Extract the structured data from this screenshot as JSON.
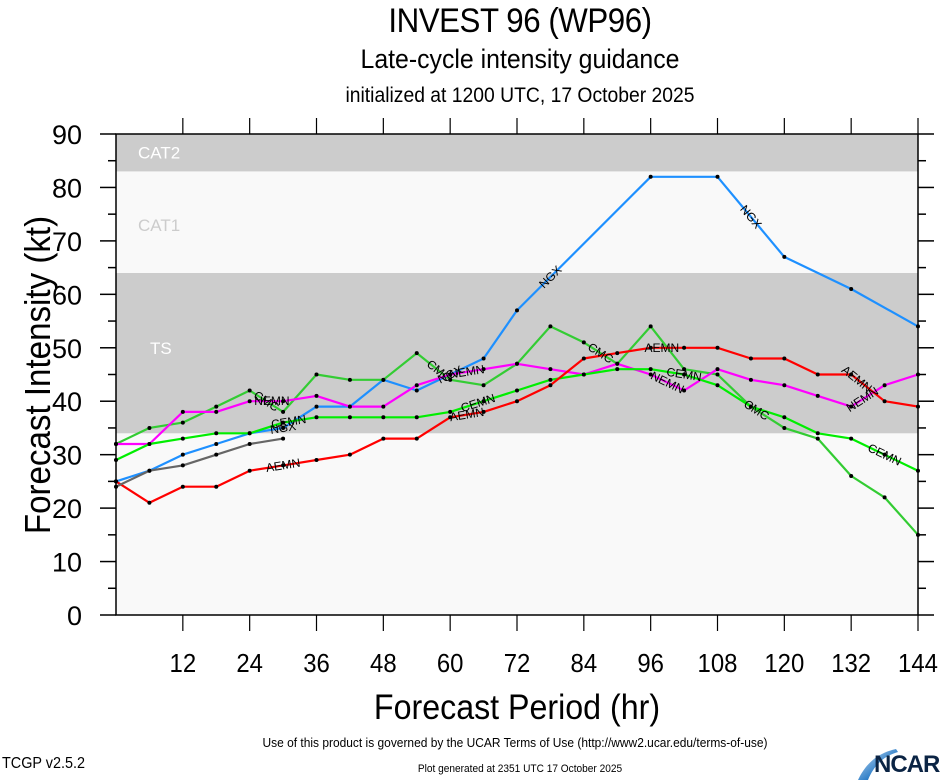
{
  "header": {
    "title": "INVEST 96 (WP96)",
    "subtitle": "Late-cycle intensity guidance",
    "init_line": "initialized at 1200 UTC, 17 October 2025"
  },
  "footer": {
    "terms": "Use of this product is governed by the UCAR Terms of Use (http://www2.ucar.edu/terms-of-use)",
    "version": "TCGP v2.5.2",
    "generated": "Plot generated at 2351 UTC   17 October 2025",
    "logo_text": "NCAR"
  },
  "chart_data": {
    "type": "line",
    "title": "INVEST 96 (WP96)",
    "xlabel": "Forecast Period (hr)",
    "ylabel": "Forecast Intensity (kt)",
    "xlim": [
      0,
      144
    ],
    "ylim": [
      0,
      90
    ],
    "x_ticks": [
      12,
      24,
      36,
      48,
      60,
      72,
      84,
      96,
      108,
      120,
      132,
      144
    ],
    "x_tick_labels": [
      "12",
      "24",
      "36",
      "48",
      "60",
      "72",
      "84",
      "96",
      "108",
      "120",
      "132",
      "144"
    ],
    "y_ticks": [
      0,
      10,
      20,
      30,
      40,
      50,
      60,
      70,
      80,
      90
    ],
    "y_tick_labels": [
      "0",
      "10",
      "20",
      "30",
      "40",
      "50",
      "60",
      "70",
      "80",
      "90"
    ],
    "grid": false,
    "bands": [
      {
        "label": "TS",
        "from": 34,
        "to": 64,
        "color": "#cccccc",
        "label_color": "#ffffff"
      },
      {
        "label": "CAT1",
        "from": 64,
        "to": 83,
        "color": "#f9f9f9",
        "label_color": "#cccccc"
      },
      {
        "label": "CAT2",
        "from": 83,
        "to": 90,
        "color": "#cccccc",
        "label_color": "#ffffff"
      }
    ],
    "below_band_color": "#f9f9f9",
    "series": [
      {
        "name": "NGX",
        "color": "#1e90ff",
        "x": [
          0,
          6,
          12,
          18,
          24,
          30,
          36,
          42,
          48,
          54,
          60,
          66,
          72,
          96,
          108,
          120,
          132,
          144
        ],
        "y": [
          25,
          27,
          30,
          32,
          34,
          35,
          39,
          39,
          44,
          42,
          45,
          48,
          57,
          82,
          82,
          67,
          61,
          54
        ],
        "labels_at": [
          30,
          60,
          78,
          114
        ]
      },
      {
        "name": "CMC",
        "color": "#33cc33",
        "x": [
          0,
          6,
          12,
          18,
          24,
          30,
          36,
          42,
          48,
          54,
          60,
          66,
          72,
          78,
          84,
          90,
          96,
          102,
          108,
          114,
          120,
          126,
          132,
          138,
          144
        ],
        "y": [
          32,
          35,
          36,
          39,
          42,
          38,
          45,
          44,
          44,
          49,
          44,
          43,
          47,
          54,
          51,
          47,
          54,
          46,
          45,
          39,
          35,
          33,
          26,
          22,
          15
        ],
        "labels_at": [
          27,
          58,
          87,
          115
        ]
      },
      {
        "name": "NEMN",
        "color": "#ff00ff",
        "x": [
          0,
          6,
          12,
          18,
          24,
          30,
          36,
          42,
          48,
          54,
          60,
          66,
          72,
          78,
          84,
          90,
          96,
          102,
          108,
          114,
          120,
          126,
          132,
          138,
          144
        ],
        "y": [
          32,
          32,
          38,
          38,
          40,
          40,
          41,
          39,
          39,
          43,
          45,
          46,
          47,
          46,
          45,
          47,
          45,
          42,
          46,
          44,
          43,
          41,
          39,
          43,
          45
        ],
        "labels_at": [
          28,
          63,
          99,
          134
        ]
      },
      {
        "name": "CEMN",
        "color": "#00ee00",
        "x": [
          0,
          6,
          12,
          18,
          24,
          30,
          36,
          42,
          48,
          54,
          60,
          66,
          72,
          78,
          84,
          90,
          96,
          102,
          108,
          114,
          120,
          126,
          132,
          138,
          144
        ],
        "y": [
          29,
          32,
          33,
          34,
          34,
          36,
          37,
          37,
          37,
          37,
          38,
          40,
          42,
          44,
          45,
          46,
          46,
          45,
          43,
          39,
          37,
          34,
          33,
          30,
          27
        ],
        "labels_at": [
          31,
          65,
          102,
          138
        ]
      },
      {
        "name": "AEMN",
        "color": "#ff0000",
        "x": [
          0,
          6,
          12,
          18,
          24,
          30,
          36,
          42,
          48,
          54,
          60,
          66,
          72,
          78,
          84,
          90,
          96,
          102,
          108,
          114,
          120,
          126,
          132,
          138,
          144
        ],
        "y": [
          25,
          21,
          24,
          24,
          27,
          28,
          29,
          30,
          33,
          33,
          37,
          38,
          40,
          43,
          48,
          49,
          50,
          50,
          50,
          48,
          48,
          45,
          45,
          40,
          39
        ],
        "labels_at": [
          30,
          63,
          98,
          133
        ]
      },
      {
        "name": "",
        "color": "#666666",
        "x": [
          0,
          6,
          12,
          18,
          24,
          30
        ],
        "y": [
          24,
          27,
          28,
          30,
          32,
          33
        ],
        "labels_at": []
      }
    ]
  }
}
